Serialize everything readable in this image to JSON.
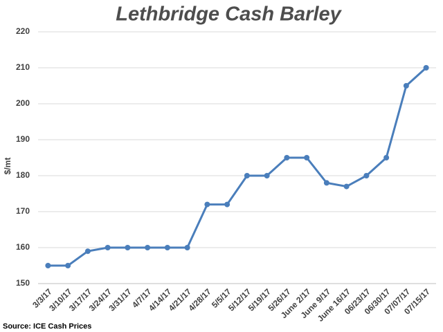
{
  "chart_data": {
    "type": "line",
    "title": "Lethbridge Cash Barley",
    "y_label": "$/mt",
    "source": "Source: ICE Cash Prices",
    "categories": [
      "3/3/17",
      "3/10/17",
      "3/17/17",
      "3/24/17",
      "3/31/17",
      "4/7/17",
      "4/14/17",
      "4/21/17",
      "4/28/17",
      "5/5/17",
      "5/12/17",
      "5/19/17",
      "5/26/17",
      "June 2/17",
      "June 9/17",
      "June 16/17",
      "06/23/17",
      "06/30/17",
      "07/07/17",
      "07/15/17"
    ],
    "series": [
      {
        "name": "Lethbridge Cash Barley",
        "color": "#4a7ebb",
        "values": [
          155,
          155,
          159,
          160,
          160,
          160,
          160,
          160,
          172,
          172,
          180,
          180,
          185,
          185,
          178,
          177,
          180,
          185,
          205,
          210
        ]
      }
    ],
    "ylim": [
      150,
      220
    ],
    "yticks": [
      150,
      160,
      170,
      180,
      190,
      200,
      210,
      220
    ],
    "grid": true
  }
}
